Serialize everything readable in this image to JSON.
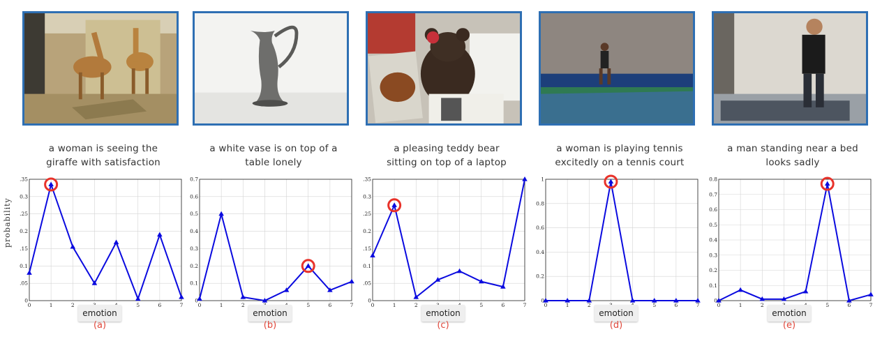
{
  "colors": {
    "frame": "#2e6fb3",
    "line": "#0a0adf",
    "highlight": "#e8322a",
    "panel_label": "#e0473a"
  },
  "y_axis_label": "probability",
  "x_axis_label": "emotion",
  "chart_data": [
    {
      "type": "line",
      "panel_label": "(a)",
      "caption": [
        "a woman is seeing the",
        "giraffe with satisfaction"
      ],
      "photo_icon": "giraffe-photo",
      "x": [
        0,
        1,
        2,
        3,
        4,
        5,
        6,
        7
      ],
      "y": [
        0.08,
        0.335,
        0.155,
        0.05,
        0.168,
        0.005,
        0.19,
        0.01
      ],
      "ylim": [
        0,
        0.35
      ],
      "yticks": [
        "0",
        "0.05",
        "0.1",
        "0.15",
        "0.2",
        "0.25",
        "0.3",
        "0.35"
      ],
      "yticks_val": [
        0,
        0.05,
        0.1,
        0.15,
        0.2,
        0.25,
        0.3,
        0.35
      ],
      "highlight_x": 1
    },
    {
      "type": "line",
      "panel_label": "(b)",
      "caption": [
        "a white vase is on top of a",
        "table lonely"
      ],
      "photo_icon": "vase-photo",
      "x": [
        0,
        1,
        2,
        3,
        4,
        5,
        6,
        7
      ],
      "y": [
        0.01,
        0.5,
        0.02,
        0.0,
        0.06,
        0.2,
        0.06,
        0.11
      ],
      "ylim": [
        0,
        0.7
      ],
      "yticks": [
        "0",
        "0.1",
        "0.2",
        "0.3",
        "0.4",
        "0.5",
        "0.6",
        "0.7"
      ],
      "yticks_val": [
        0,
        0.1,
        0.2,
        0.3,
        0.4,
        0.5,
        0.6,
        0.7
      ],
      "highlight_x": 5
    },
    {
      "type": "line",
      "panel_label": "(c)",
      "caption": [
        "a pleasing teddy bear",
        "sitting on top of a laptop"
      ],
      "photo_icon": "teddy-bear-photo",
      "x": [
        0,
        1,
        2,
        3,
        4,
        5,
        6,
        7
      ],
      "y": [
        0.13,
        0.275,
        0.01,
        0.06,
        0.085,
        0.055,
        0.04,
        0.35
      ],
      "ylim": [
        0,
        0.35
      ],
      "yticks": [
        "0",
        "0.05",
        "0.1",
        "0.15",
        "0.2",
        "0.25",
        "0.3",
        "0.35"
      ],
      "yticks_val": [
        0,
        0.05,
        0.1,
        0.15,
        0.2,
        0.25,
        0.3,
        0.35
      ],
      "highlight_x": 1
    },
    {
      "type": "line",
      "panel_label": "(d)",
      "caption": [
        "a woman is playing tennis",
        "excitedly on a tennis court"
      ],
      "photo_icon": "tennis-photo",
      "x": [
        0,
        1,
        2,
        3,
        4,
        5,
        6,
        7
      ],
      "y": [
        0.0,
        0.0,
        0.0,
        0.98,
        0.0,
        0.0,
        0.0,
        0.0
      ],
      "ylim": [
        0,
        1
      ],
      "yticks": [
        "0",
        "0.2",
        "0.4",
        "0.6",
        "0.8",
        "1"
      ],
      "yticks_val": [
        0,
        0.2,
        0.4,
        0.6,
        0.8,
        1
      ],
      "highlight_x": 3
    },
    {
      "type": "line",
      "panel_label": "(e)",
      "caption": [
        "a man standing near a bed",
        "looks sadly"
      ],
      "photo_icon": "man-bed-photo",
      "x": [
        0,
        1,
        2,
        3,
        4,
        5,
        6,
        7
      ],
      "y": [
        0.0,
        0.07,
        0.01,
        0.01,
        0.06,
        0.77,
        0.0,
        0.04
      ],
      "ylim": [
        0,
        0.8
      ],
      "yticks": [
        "0",
        "0.1",
        "0.2",
        "0.3",
        "0.4",
        "0.5",
        "0.6",
        "0.7",
        "0.8"
      ],
      "yticks_val": [
        0,
        0.1,
        0.2,
        0.3,
        0.4,
        0.5,
        0.6,
        0.7,
        0.8
      ],
      "highlight_x": 5
    }
  ]
}
